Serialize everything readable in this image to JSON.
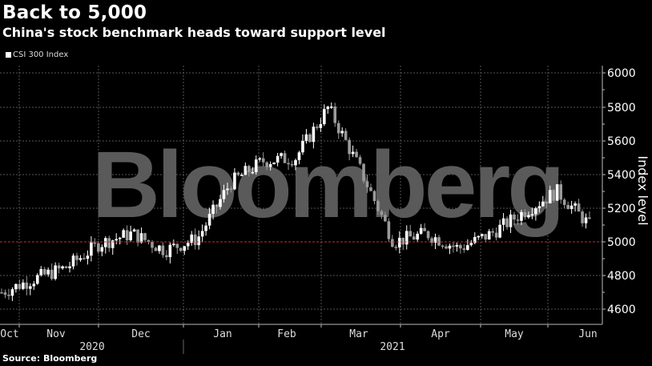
{
  "header": {
    "title": "Back to 5,000",
    "subtitle": "China's stock benchmark heads toward support level"
  },
  "legend": {
    "items": [
      {
        "label": "CSI 300 Index",
        "color": "#ffffff"
      }
    ]
  },
  "footer": {
    "source": "Source: Bloomberg"
  },
  "watermark": "Bloomberg",
  "colors": {
    "background": "#000000",
    "grid": "#555555",
    "support_line": "#c0303a",
    "candle_up": "#ffffff",
    "candle_down": "#9a9a9a",
    "watermark": "#5a5a5a"
  },
  "chart_data": {
    "type": "candlestick",
    "title": "Back to 5,000",
    "subtitle": "China's stock benchmark heads toward support level",
    "xlabel": "",
    "ylabel": "Index level",
    "ylim": [
      4550,
      6050
    ],
    "y_ticks": [
      4600,
      4800,
      5000,
      5200,
      5400,
      5600,
      5800,
      6000
    ],
    "grid": true,
    "legend_position": "top-left",
    "reference_line": {
      "value": 5000,
      "color": "#c0303a",
      "style": "dashed"
    },
    "x_month_labels": [
      "Oct",
      "Nov",
      "Dec",
      "Jan",
      "Feb",
      "Mar",
      "Apr",
      "May",
      "Jun"
    ],
    "x_year_labels": [
      "2020",
      "2021"
    ],
    "series": [
      {
        "name": "CSI 300 Index",
        "note": "weekly-sampled approximate closes read from candle bodies",
        "x": [
          "2020-10-01",
          "2020-10-15",
          "2020-10-29",
          "2020-11-12",
          "2020-11-26",
          "2020-12-10",
          "2020-12-24",
          "2021-01-07",
          "2021-01-21",
          "2021-02-04",
          "2021-02-18",
          "2021-03-04",
          "2021-03-18",
          "2021-04-01",
          "2021-04-15",
          "2021-04-29",
          "2021-05-13",
          "2021-05-27",
          "2021-06-10"
        ],
        "values": [
          4700,
          4780,
          4850,
          4990,
          5050,
          4950,
          5020,
          5350,
          5480,
          5500,
          5800,
          5420,
          5000,
          5050,
          4960,
          5050,
          5180,
          5300,
          5100
        ]
      }
    ]
  }
}
